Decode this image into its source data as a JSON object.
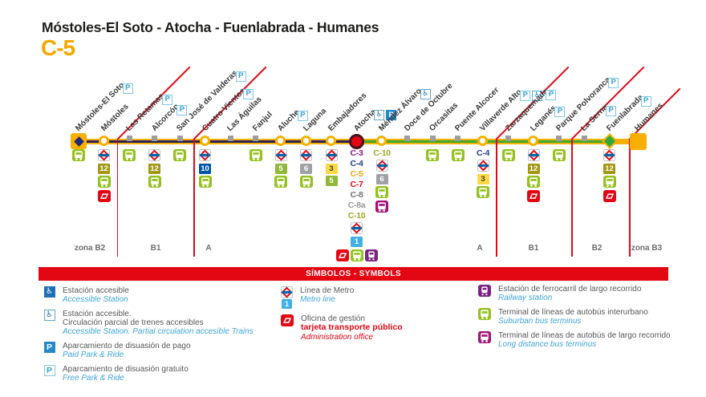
{
  "title": "Móstoles-El Soto - Atocha - Fuenlabrada - Humanes",
  "line_badge": "C-5",
  "colors": {
    "line_yellow": "#f8b000",
    "stripe_navy": "#29235c",
    "stripe_green": "#3aaa35",
    "zone_red": "#e30613",
    "minor_gray": "#9d9d9c",
    "bus": "#95c11f",
    "busld": "#a21479",
    "office": "#e30613",
    "rail": "#7b2381",
    "metro_red": "#e30613",
    "metro_blue": "#0065ab"
  },
  "badges": {
    "m12": {
      "label": "12",
      "bg": "#a29817",
      "fg": "#ffffff"
    },
    "m10": {
      "label": "10",
      "bg": "#0055a5",
      "fg": "#ffffff"
    },
    "m5": {
      "label": "5",
      "bg": "#90b939",
      "fg": "#ffffff"
    },
    "m6": {
      "label": "6",
      "bg": "#9fa1a4",
      "fg": "#ffffff"
    },
    "m3": {
      "label": "3",
      "bg": "#ffd943",
      "fg": "#3c3c3b"
    },
    "m1": {
      "label": "1",
      "bg": "#41b0e4",
      "fg": "#ffffff"
    },
    "c3": {
      "label": "C-3",
      "color": "#93117e"
    },
    "c4": {
      "label": "C-4",
      "color": "#1e3d8f"
    },
    "c5": {
      "label": "C-5",
      "color": "#f1a104"
    },
    "c7": {
      "label": "C-7",
      "color": "#e30613"
    },
    "c8": {
      "label": "C-8",
      "color": "#6f7072"
    },
    "c8a": {
      "label": "C-8a",
      "color": "#98989a"
    },
    "c10": {
      "label": "C-10",
      "color": "#9ba921"
    }
  },
  "map": {
    "stations": [
      {
        "name": "Móstoles-El Soto",
        "symbol": "terminal-start",
        "top": [
          "p"
        ],
        "below": [
          "bus"
        ]
      },
      {
        "name": "Móstoles",
        "symbol": "major",
        "top": [],
        "below": [
          "metro",
          "m12",
          "bus",
          "office"
        ]
      },
      {
        "name": "Las Retamas",
        "symbol": "minor",
        "top": [
          "p"
        ],
        "below": [
          "bus"
        ]
      },
      {
        "name": "Alcorcón",
        "symbol": "minor",
        "top": [
          "p"
        ],
        "below": [
          "metro",
          "m12",
          "bus"
        ]
      },
      {
        "name": "San José de Valderas",
        "symbol": "minor",
        "top": [
          "p"
        ],
        "below": [
          "bus"
        ]
      },
      {
        "name": "Cuatro Vientos",
        "symbol": "major",
        "top": [
          "p"
        ],
        "below": [
          "metro",
          "m10",
          "bus"
        ]
      },
      {
        "name": "Las Águilas",
        "symbol": "minor",
        "top": [],
        "below": []
      },
      {
        "name": "Fanjul",
        "symbol": "minor",
        "top": [],
        "below": [
          "bus"
        ]
      },
      {
        "name": "Aluche",
        "symbol": "major",
        "top": [
          "p"
        ],
        "below": [
          "metro",
          "m5",
          "bus"
        ]
      },
      {
        "name": "Laguna",
        "symbol": "major",
        "top": [],
        "below": [
          "metro",
          "m6",
          "bus"
        ]
      },
      {
        "name": "Embajadores",
        "symbol": "major",
        "top": [],
        "below": [
          "metro",
          "m3",
          "m5"
        ]
      },
      {
        "name": "Atocha",
        "symbol": "interchange",
        "top": [
          "wheel",
          "p_solid"
        ],
        "below": [
          "c3",
          "c4",
          "c5",
          "c7",
          "c8",
          "c8a",
          "c10",
          "metro",
          "m1",
          [
            "office",
            "bus",
            "rail"
          ]
        ]
      },
      {
        "name": "Méndez Álvaro",
        "symbol": "major",
        "top": [
          "wheel"
        ],
        "below": [
          "c10",
          "metro",
          "m6",
          "bus",
          "busld"
        ]
      },
      {
        "name": "Doce de Octubre",
        "symbol": "minor",
        "top": [],
        "below": []
      },
      {
        "name": "Orcasitas",
        "symbol": "minor",
        "top": [],
        "below": [
          "bus"
        ]
      },
      {
        "name": "Puente Alcocer",
        "symbol": "minor",
        "top": [],
        "below": [
          "bus"
        ]
      },
      {
        "name": "Villaverde Alto",
        "symbol": "major",
        "top": [
          "p",
          "wheel"
        ],
        "below": [
          "c4",
          "metro",
          "m3",
          "bus"
        ]
      },
      {
        "name": "Zarzaquemada",
        "symbol": "minor",
        "top": [
          "p"
        ],
        "below": [
          "bus"
        ]
      },
      {
        "name": "Leganés",
        "symbol": "major",
        "top": [
          "p"
        ],
        "below": [
          "metro",
          "m12",
          "bus",
          "office"
        ]
      },
      {
        "name": "Parque Polvoranca",
        "symbol": "minor",
        "top": [
          "p"
        ],
        "below": [
          "bus"
        ]
      },
      {
        "name": "La Serna",
        "symbol": "minor",
        "top": [
          "p"
        ],
        "below": []
      },
      {
        "name": "Fuenlabrada",
        "symbol": "diamond",
        "top": [
          "p"
        ],
        "below": [
          "metro",
          "m12",
          "bus",
          "office"
        ]
      },
      {
        "name": "Humanes",
        "symbol": "terminal-end",
        "top": [],
        "below": []
      }
    ],
    "zones": [
      "zona B2",
      "B1",
      "A",
      "A",
      "B1",
      "B2",
      "zona B3"
    ]
  },
  "legend": {
    "banner": "SÍMBOLOS - SYMBOLS",
    "columns": [
      [
        {
          "icon": "wheel_s",
          "lines": [
            {
              "t": "Estación accesible",
              "s": "es"
            },
            {
              "t": "Accessible Station",
              "s": "en"
            }
          ]
        },
        {
          "icon": "wheel_o",
          "lines": [
            {
              "t": "Estación accesible.",
              "s": "es"
            },
            {
              "t": "Circulación parcial de trenes accesibles",
              "s": "es"
            },
            {
              "t": "Accessible Station. Partial circulation accesible Trains",
              "s": "en"
            }
          ]
        },
        {
          "icon": "p_solid",
          "lines": [
            {
              "t": "Aparcamiento de disuasión de pago",
              "s": "es"
            },
            {
              "t": "Paid Park & Ride",
              "s": "en"
            }
          ]
        },
        {
          "icon": "p",
          "lines": [
            {
              "t": "Aparcamiento de disuasión gratuito",
              "s": "es"
            },
            {
              "t": "Free Park & Ride",
              "s": "en"
            }
          ]
        }
      ],
      [
        {
          "icon": "metro_line",
          "lines": [
            {
              "t": "Línea de Metro",
              "s": "es"
            },
            {
              "t": "Metro line",
              "s": "en"
            }
          ]
        },
        {
          "icon": "office",
          "lines": [
            {
              "t": "Oficina de gestión",
              "s": "es"
            },
            {
              "t": "tarjeta transporte público",
              "s": "redb"
            },
            {
              "t": "Administration office",
              "s": "redi"
            }
          ]
        }
      ],
      [
        {
          "icon": "rail",
          "lines": [
            {
              "t": "Estación de ferrocarril de largo recorrido",
              "s": "es"
            },
            {
              "t": "Railway station",
              "s": "en"
            }
          ]
        },
        {
          "icon": "bus",
          "lines": [
            {
              "t": "Terminal de líneas de autobús interurbano",
              "s": "es"
            },
            {
              "t": "Suburban bus terminus",
              "s": "en"
            }
          ]
        },
        {
          "icon": "busld",
          "lines": [
            {
              "t": "Terminal de líneas de autobús de largo recorrido",
              "s": "es"
            },
            {
              "t": "Long distance bus terminus",
              "s": "en"
            }
          ]
        }
      ]
    ]
  }
}
